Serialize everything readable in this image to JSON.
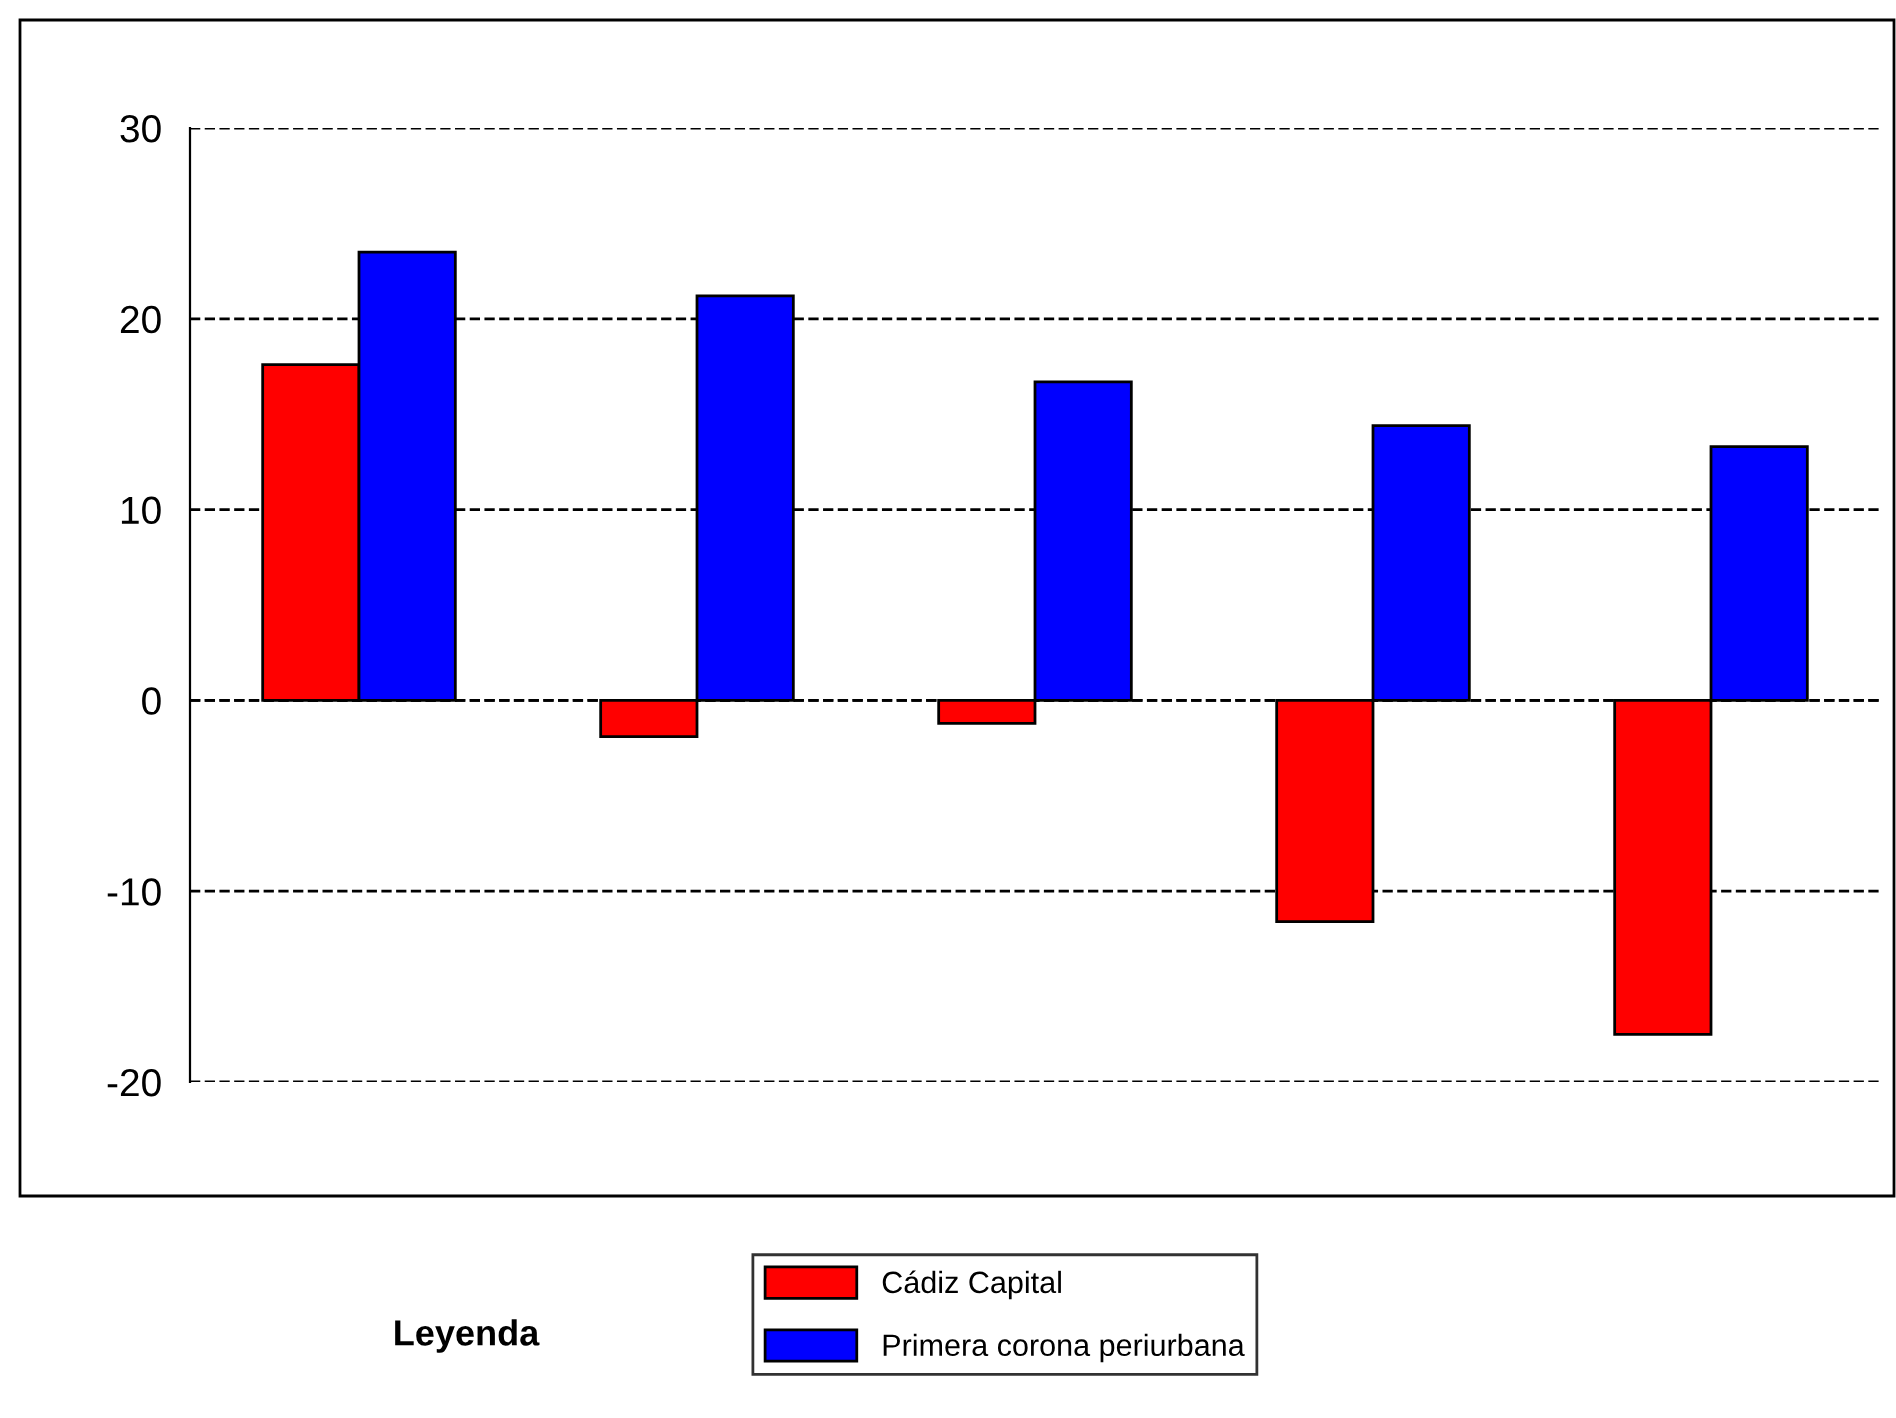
{
  "chart_data": {
    "type": "bar",
    "categories": [
      null,
      null,
      null,
      null,
      null
    ],
    "series": [
      {
        "name": "Cádiz Capital",
        "color": "#ff0000",
        "values": [
          17.6,
          -1.9,
          -1.2,
          -11.6,
          -17.5
        ]
      },
      {
        "name": "Primera corona periurbana",
        "color": "#0000ff",
        "values": [
          23.5,
          21.2,
          16.7,
          14.4,
          13.3
        ]
      }
    ],
    "ylim": [
      -20,
      30
    ],
    "yticks": [
      -20,
      -10,
      0,
      10,
      20,
      30
    ],
    "grid": "y",
    "legend": "bottom",
    "legend_title": "Leyenda"
  }
}
